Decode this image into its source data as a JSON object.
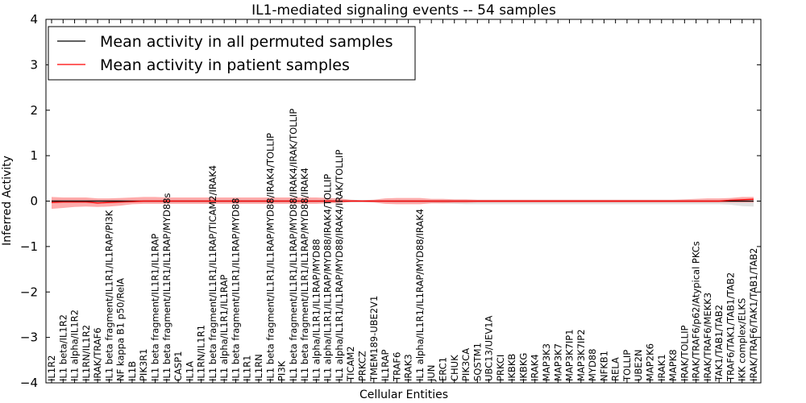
{
  "chart_data": {
    "type": "line",
    "title": "IL1-mediated signaling events -- 54 samples",
    "xlabel": "Cellular Entities",
    "ylabel": "Inferred Activity",
    "ylim": [
      -4,
      4
    ],
    "yticks": [
      4,
      3,
      2,
      1,
      0,
      -1,
      -2,
      -3,
      -4
    ],
    "ytick_labels": [
      "4",
      "3",
      "2",
      "1",
      "0",
      "−1",
      "−2",
      "−3",
      "−4"
    ],
    "grid": false,
    "legend_position": "top-left",
    "categories": [
      "IL1R2",
      "IL1 beta/IL1R2",
      "IL1 alpha/IL1R2",
      "IL1RN/IL1R2",
      "IRAK/TRAF6",
      "IL1 beta fragment/IL1R1/IL1RAP/PI3K",
      "NF kappa B1 p50/RelA",
      "IL1B",
      "PIK3R1",
      "IL1 beta fragment/IL1R1/IL1RAP",
      "IL1 beta fragment/IL1R1/IL1RAP/MYD88s",
      "CASP1",
      "IL1A",
      "IL1RN/IL1R1",
      "IL1 beta fragment/IL1R1/IL1RAP/TICAM2/IRAK4",
      "IL1 alpha/IL1R1/IL1RAP",
      "IL1 beta fragment/IL1R1/IL1RAP/MYD88",
      "IL1R1",
      "IL1RN",
      "IL1 beta fragment/IL1R1/IL1RAP/MYD88/IRAK4/TOLLIP",
      "PI3K",
      "IL1 beta fragment/IL1R1/IL1RAP/MYD88/IRAK4/IRAK/TOLLIP",
      "IL1 beta fragment/IL1R1/IL1RAP/MYD88/IRAK4",
      "IL1 alpha/IL1R1/IL1RAP/MYD88",
      "IL1 alpha/IL1R1/IL1RAP/MYD88/IRAK4/TOLLIP",
      "IL1 alpha/IL1R1/IL1RAP/MYD88/IRAK4/IRAK/TOLLIP",
      "TICAM2",
      "PRKCZ",
      "TMEM189-UBE2V1",
      "IL1RAP",
      "TRAF6",
      "IRAK3",
      "IL1 alpha/IL1R1/IL1RAP/MYD88/IRAK4",
      "JUN",
      "ERC1",
      "CHUK",
      "PIK3CA",
      "SQSTM1",
      "UBC13/UEV1A",
      "PRKCI",
      "IKBKB",
      "IKBKG",
      "IRAK4",
      "MAP3K3",
      "MAP3K7",
      "MAP3K7IP1",
      "MAP3K7IP2",
      "MYD88",
      "NFKB1",
      "RELA",
      "TOLLIP",
      "UBE2N",
      "MAP2K6",
      "IRAK1",
      "MAPK8",
      "IRAK/TOLLIP",
      "IRAK/TRAF6/p62/Atypical PKCs",
      "IRAK/TRAF6/MEKK3",
      "TAK1/TAB1/TAB2",
      "TRAF6/TAK1/TAB1/TAB2",
      "IKK complex/ELKS",
      "IRAK/TRAF6/TAK1/TAB1/TAB2"
    ],
    "series": [
      {
        "name": "Mean activity in all permuted samples",
        "color": "#000000",
        "values": [
          0.0,
          0.0,
          0.0,
          0.0,
          0.0,
          0.0,
          0.0,
          0.0,
          0.0,
          0.0,
          0.0,
          0.0,
          0.0,
          0.0,
          0.0,
          0.0,
          0.0,
          0.0,
          0.0,
          0.0,
          0.0,
          0.0,
          0.0,
          0.0,
          0.0,
          0.0,
          0.0,
          0.0,
          0.0,
          0.0,
          0.0,
          0.0,
          0.0,
          0.0,
          0.0,
          0.0,
          0.0,
          0.0,
          0.0,
          0.0,
          0.0,
          0.0,
          0.0,
          0.0,
          0.0,
          0.0,
          0.0,
          0.0,
          0.0,
          0.0,
          0.0,
          0.0,
          0.0,
          0.0,
          0.0,
          0.0,
          0.0,
          0.0,
          0.0,
          0.0,
          0.0,
          0.0
        ],
        "band_upper": [
          0.04,
          0.04,
          0.04,
          0.04,
          0.03,
          0.03,
          0.03,
          0.03,
          0.03,
          0.03,
          0.03,
          0.03,
          0.03,
          0.03,
          0.03,
          0.03,
          0.03,
          0.03,
          0.03,
          0.03,
          0.03,
          0.03,
          0.03,
          0.03,
          0.03,
          0.03,
          0.02,
          0.02,
          0.02,
          0.02,
          0.02,
          0.02,
          0.02,
          0.02,
          0.02,
          0.02,
          0.02,
          0.02,
          0.02,
          0.02,
          0.02,
          0.02,
          0.02,
          0.02,
          0.02,
          0.02,
          0.02,
          0.02,
          0.02,
          0.02,
          0.02,
          0.02,
          0.02,
          0.02,
          0.02,
          0.02,
          0.02,
          0.02,
          0.02,
          0.02,
          0.03,
          0.03
        ],
        "band_lower": [
          -0.04,
          -0.04,
          -0.04,
          -0.04,
          -0.03,
          -0.03,
          -0.03,
          -0.03,
          -0.03,
          -0.03,
          -0.03,
          -0.03,
          -0.03,
          -0.03,
          -0.03,
          -0.03,
          -0.03,
          -0.03,
          -0.03,
          -0.03,
          -0.03,
          -0.03,
          -0.03,
          -0.03,
          -0.03,
          -0.03,
          -0.02,
          -0.02,
          -0.02,
          -0.02,
          -0.03,
          -0.03,
          -0.03,
          -0.04,
          -0.05,
          -0.06,
          -0.07,
          -0.07,
          -0.07,
          -0.07,
          -0.07,
          -0.07,
          -0.07,
          -0.07,
          -0.07,
          -0.07,
          -0.07,
          -0.07,
          -0.07,
          -0.07,
          -0.07,
          -0.07,
          -0.07,
          -0.07,
          -0.07,
          -0.07,
          -0.07,
          -0.07,
          -0.07,
          -0.08,
          -0.11,
          -0.12
        ]
      },
      {
        "name": "Mean activity in patient samples",
        "color": "#ff0000",
        "values": [
          -0.03,
          -0.02,
          -0.02,
          -0.02,
          -0.04,
          -0.03,
          -0.02,
          -0.01,
          0.0,
          0.0,
          0.0,
          0.0,
          0.0,
          0.0,
          0.0,
          0.0,
          0.0,
          0.0,
          0.0,
          0.0,
          0.0,
          0.0,
          0.0,
          0.0,
          0.0,
          0.0,
          0.0,
          0.0,
          0.0,
          0.0,
          0.0,
          0.0,
          0.0,
          0.0,
          0.0,
          0.0,
          0.0,
          0.0,
          0.0,
          0.0,
          0.0,
          0.0,
          0.0,
          0.0,
          0.0,
          0.0,
          0.0,
          0.0,
          0.0,
          0.0,
          0.0,
          0.0,
          0.0,
          0.0,
          0.0,
          0.0,
          0.0,
          0.0,
          0.0,
          0.02,
          0.03,
          0.04
        ],
        "band_upper": [
          0.09,
          0.08,
          0.08,
          0.08,
          0.06,
          0.06,
          0.07,
          0.08,
          0.09,
          0.09,
          0.08,
          0.08,
          0.08,
          0.08,
          0.08,
          0.08,
          0.08,
          0.08,
          0.08,
          0.08,
          0.08,
          0.08,
          0.08,
          0.08,
          0.07,
          0.06,
          0.03,
          0.02,
          0.03,
          0.06,
          0.07,
          0.07,
          0.07,
          0.05,
          0.05,
          0.04,
          0.04,
          0.03,
          0.03,
          0.03,
          0.03,
          0.03,
          0.03,
          0.03,
          0.03,
          0.03,
          0.03,
          0.03,
          0.03,
          0.03,
          0.03,
          0.03,
          0.03,
          0.03,
          0.03,
          0.04,
          0.05,
          0.06,
          0.06,
          0.07,
          0.09,
          0.09
        ],
        "band_lower": [
          -0.17,
          -0.15,
          -0.13,
          -0.12,
          -0.13,
          -0.12,
          -0.1,
          -0.07,
          -0.06,
          -0.06,
          -0.06,
          -0.06,
          -0.06,
          -0.06,
          -0.06,
          -0.06,
          -0.06,
          -0.06,
          -0.06,
          -0.06,
          -0.06,
          -0.06,
          -0.06,
          -0.06,
          -0.05,
          -0.04,
          -0.02,
          -0.02,
          -0.03,
          -0.06,
          -0.07,
          -0.07,
          -0.07,
          -0.05,
          -0.05,
          -0.04,
          -0.04,
          -0.03,
          -0.03,
          -0.03,
          -0.03,
          -0.03,
          -0.03,
          -0.03,
          -0.03,
          -0.03,
          -0.03,
          -0.03,
          -0.03,
          -0.03,
          -0.03,
          -0.03,
          -0.03,
          -0.03,
          -0.03,
          -0.03,
          -0.03,
          -0.03,
          -0.03,
          -0.03,
          -0.03,
          -0.03
        ]
      }
    ],
    "band_colors": {
      "permuted": "#bfbfbf",
      "patient": "#ff6666"
    }
  }
}
